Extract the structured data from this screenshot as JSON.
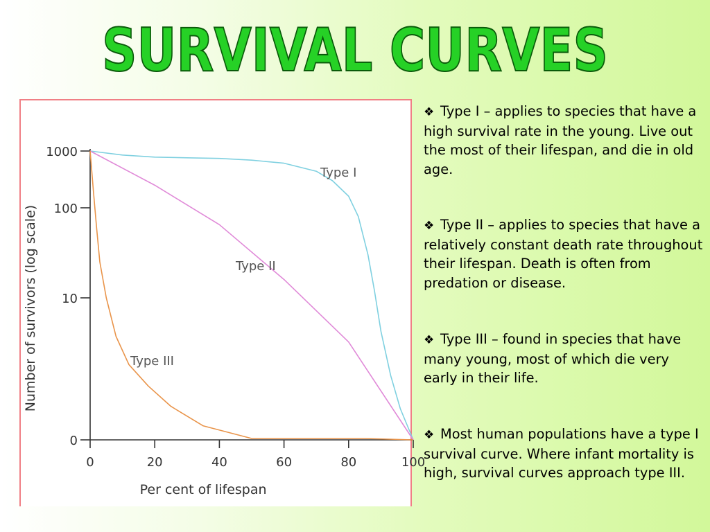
{
  "slide": {
    "title": "SURVIVAL CURVES",
    "colors": {
      "title_fill": "#26d126",
      "title_stroke": "#0a5a0a",
      "panel_border": "#f07f85"
    },
    "bullet_icon": "diamond-bullet-icon",
    "bullets": [
      "Type I – applies to species that have a high survival rate in the young. Live out the most of their lifespan, and die in old age.",
      "Type II – applies to species that have a relatively constant death rate throughout their lifespan. Death is often from predation or disease.",
      "Type III – found in species that have many young, most of which die very early in their life.",
      "Most human populations have a type I survival curve. Where infant mortality is high, survival curves approach type III."
    ]
  },
  "chart_data": {
    "type": "line",
    "xlabel": "Per cent of lifespan",
    "ylabel": "Number of survivors (log scale)",
    "x_ticks": [
      "0",
      "20",
      "40",
      "60",
      "80",
      "100"
    ],
    "y_ticks": [
      "0",
      "10",
      "100",
      "1000"
    ],
    "y_scale": "log",
    "xlim": [
      0,
      100
    ],
    "ylim": [
      0,
      1000
    ],
    "grid": false,
    "series": [
      {
        "name": "Type I",
        "color": "#7fd0e0",
        "points": [
          [
            0,
            1000
          ],
          [
            10,
            850
          ],
          [
            20,
            780
          ],
          [
            30,
            760
          ],
          [
            40,
            740
          ],
          [
            50,
            690
          ],
          [
            60,
            610
          ],
          [
            70,
            440
          ],
          [
            75,
            300
          ],
          [
            80,
            160
          ],
          [
            83,
            80
          ],
          [
            86,
            30
          ],
          [
            88,
            12
          ],
          [
            90,
            5
          ],
          [
            93,
            2
          ],
          [
            96,
            1
          ],
          [
            100,
            0
          ]
        ]
      },
      {
        "name": "Type II",
        "color": "#e08ad8",
        "points": [
          [
            0,
            1000
          ],
          [
            20,
            250
          ],
          [
            40,
            65
          ],
          [
            60,
            16
          ],
          [
            80,
            4
          ],
          [
            100,
            0
          ]
        ]
      },
      {
        "name": "Type III",
        "color": "#e9944a",
        "points": [
          [
            0,
            1000
          ],
          [
            1,
            200
          ],
          [
            2,
            60
          ],
          [
            3,
            25
          ],
          [
            5,
            10
          ],
          [
            8,
            4.5
          ],
          [
            12,
            2.5
          ],
          [
            18,
            1.6
          ],
          [
            25,
            1.05
          ],
          [
            35,
            0.7
          ],
          [
            50,
            0.45
          ],
          [
            70,
            0.35
          ],
          [
            85,
            0.28
          ],
          [
            100,
            0
          ]
        ]
      }
    ]
  }
}
